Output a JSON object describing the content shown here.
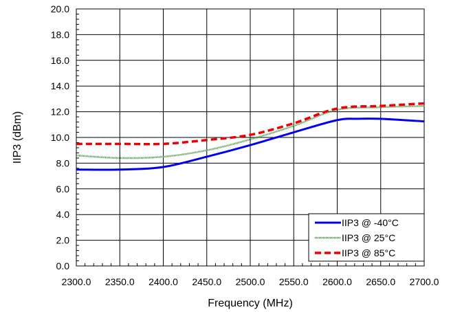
{
  "chart_data": {
    "type": "line",
    "xlabel": "Frequency (MHz)",
    "ylabel": "IIP3 (dBm)",
    "xlim": [
      2300,
      2700
    ],
    "ylim": [
      0,
      20
    ],
    "x_ticks": [
      "2300.0",
      "2350.0",
      "2400.0",
      "2450.0",
      "2500.0",
      "2550.0",
      "2600.0",
      "2650.0",
      "2700.0"
    ],
    "y_ticks": [
      "0.0",
      "2.0",
      "4.0",
      "6.0",
      "8.0",
      "10.0",
      "12.0",
      "14.0",
      "16.0",
      "18.0",
      "20.0"
    ],
    "grid": true,
    "legend_position": "bottom-right",
    "series": [
      {
        "name": "IIP3 @ -40°C",
        "color": "#0000ee",
        "style": "solid",
        "x": [
          2300,
          2350,
          2400,
          2450,
          2500,
          2550,
          2600,
          2625,
          2650,
          2700
        ],
        "values": [
          7.5,
          7.5,
          7.7,
          8.5,
          9.4,
          10.4,
          11.35,
          11.45,
          11.45,
          11.25
        ]
      },
      {
        "name": "IIP3 @ 25°C",
        "color": "#2e8b2e",
        "style": "dotted",
        "x": [
          2300,
          2350,
          2400,
          2450,
          2500,
          2550,
          2600,
          2650,
          2700
        ],
        "values": [
          8.6,
          8.4,
          8.5,
          9.0,
          9.85,
          10.9,
          12.15,
          12.35,
          12.45
        ]
      },
      {
        "name": "IIP3 @ 85°C",
        "color": "#ee0000",
        "style": "dashed",
        "x": [
          2300,
          2350,
          2400,
          2450,
          2500,
          2550,
          2600,
          2650,
          2700
        ],
        "values": [
          9.5,
          9.5,
          9.5,
          9.8,
          10.2,
          11.1,
          12.25,
          12.45,
          12.65
        ]
      }
    ]
  }
}
